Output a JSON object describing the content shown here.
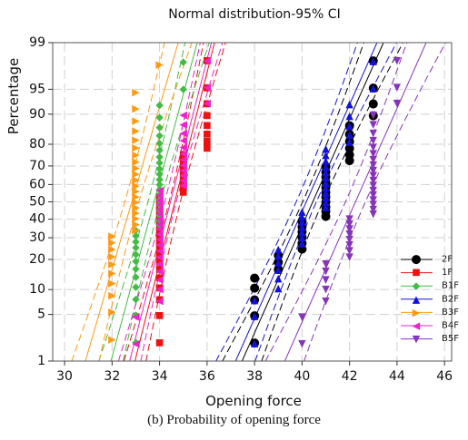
{
  "caption": "(b) Probability of opening force",
  "chart_data": {
    "type": "scatter",
    "title": "Normal distribution-95% CI",
    "xlabel": "Opening force",
    "ylabel": "Percentage",
    "xlim": [
      29.5,
      46.3
    ],
    "ylim_percent": [
      1,
      99
    ],
    "y_scale": "normal-probability",
    "x_ticks": [
      30,
      32,
      34,
      36,
      38,
      40,
      42,
      44,
      46
    ],
    "y_ticks": [
      1,
      5,
      10,
      20,
      30,
      40,
      50,
      60,
      70,
      80,
      90,
      95,
      99
    ],
    "grid": true,
    "legend_position": "bottom-right",
    "series": [
      {
        "name": "2F",
        "color": "#000000",
        "marker": "circle",
        "mean": 40.45,
        "sd": 1.28,
        "values": [
          38,
          38,
          38,
          38,
          38,
          39,
          39,
          39,
          40,
          40,
          40,
          40,
          40,
          40,
          41,
          41,
          41,
          41,
          41,
          41,
          41,
          41,
          41,
          41,
          41,
          42,
          42,
          42,
          42,
          42,
          42,
          43,
          43,
          43,
          43
        ]
      },
      {
        "name": "1F",
        "color": "#ee1111",
        "marker": "square",
        "mean": 34.64,
        "sd": 0.72,
        "values": [
          34,
          34,
          34,
          34,
          34,
          34,
          34,
          34,
          34,
          34,
          34,
          34,
          34,
          34,
          34,
          34,
          34,
          34,
          34,
          35,
          35,
          35,
          35,
          35,
          35,
          35,
          35,
          36,
          36,
          36,
          36,
          36,
          36,
          36,
          36
        ]
      },
      {
        "name": "B1F",
        "color": "#44bb44",
        "marker": "diamond",
        "mean": 33.77,
        "sd": 0.78,
        "values": [
          33,
          33,
          33,
          33,
          33,
          33,
          33,
          33,
          33,
          33,
          33,
          33,
          34,
          34,
          34,
          34,
          34,
          34,
          34,
          34,
          34,
          34,
          34,
          34,
          34,
          34,
          34,
          34,
          34,
          34,
          34,
          34,
          35,
          35
        ]
      },
      {
        "name": "B2F",
        "color": "#1111dd",
        "marker": "triangle-up",
        "mean": 40.18,
        "sd": 1.28,
        "values": [
          38,
          38,
          38,
          39,
          39,
          39,
          39,
          39,
          39,
          40,
          40,
          40,
          40,
          40,
          40,
          40,
          41,
          41,
          41,
          41,
          41,
          41,
          41,
          41,
          41,
          41,
          41,
          41,
          42,
          42,
          42,
          42,
          42,
          43,
          43
        ]
      },
      {
        "name": "B3F",
        "color": "#ff9911",
        "marker": "triangle-right",
        "mean": 32.83,
        "sd": 0.84,
        "values": [
          32,
          32,
          32,
          32,
          32,
          32,
          32,
          32,
          32,
          32,
          33,
          33,
          33,
          33,
          33,
          33,
          33,
          33,
          33,
          33,
          33,
          33,
          33,
          33,
          33,
          33,
          33,
          33,
          33,
          33,
          34
        ]
      },
      {
        "name": "B4F",
        "color": "#ee22cc",
        "marker": "triangle-left",
        "mean": 34.46,
        "sd": 0.74,
        "values": [
          33,
          33,
          34,
          34,
          34,
          34,
          34,
          34,
          34,
          34,
          34,
          34,
          34,
          34,
          34,
          34,
          34,
          34,
          34,
          34,
          34,
          35,
          35,
          35,
          35,
          35,
          35,
          35,
          35,
          35,
          35,
          35,
          35,
          36,
          36,
          36
        ]
      },
      {
        "name": "B5F",
        "color": "#8833bb",
        "marker": "triangle-down",
        "mean": 42.25,
        "sd": 1.28,
        "values": [
          40,
          40,
          41,
          41,
          41,
          41,
          41,
          42,
          42,
          42,
          42,
          42,
          42,
          42,
          42,
          43,
          43,
          43,
          43,
          43,
          43,
          43,
          43,
          43,
          43,
          43,
          43,
          43,
          43,
          43,
          43,
          43,
          43,
          44,
          44,
          44
        ]
      }
    ]
  }
}
